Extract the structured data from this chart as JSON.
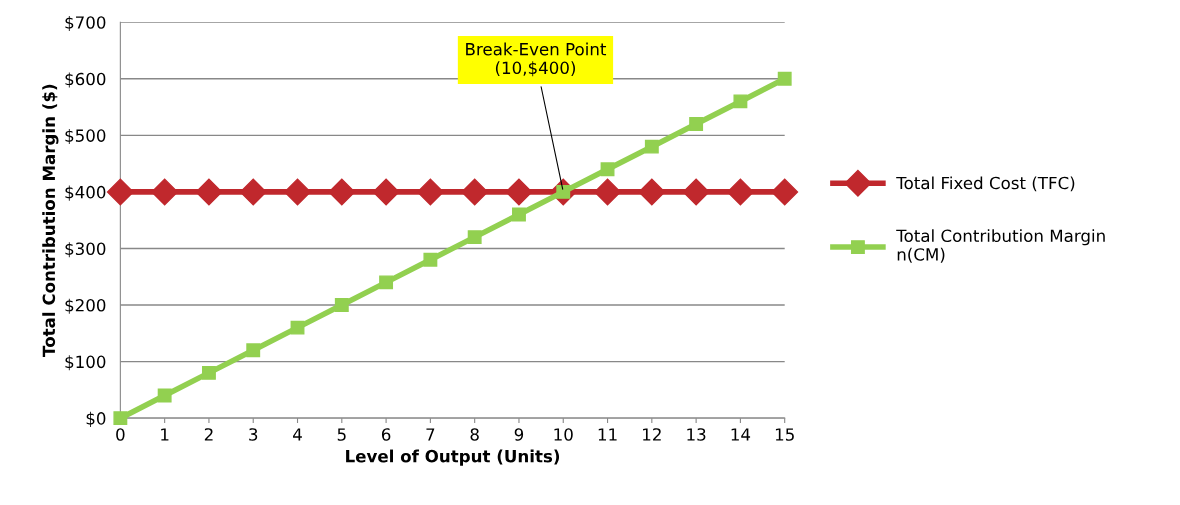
{
  "chart_data": {
    "type": "line",
    "xlabel": "Level of Output (Units)",
    "ylabel": "Total Contribution Margin ($)",
    "x": [
      0,
      1,
      2,
      3,
      4,
      5,
      6,
      7,
      8,
      9,
      10,
      11,
      12,
      13,
      14,
      15
    ],
    "series": [
      {
        "name": "Total Fixed Cost (TFC)",
        "color": "#c0282d",
        "marker": "diamond",
        "values": [
          400,
          400,
          400,
          400,
          400,
          400,
          400,
          400,
          400,
          400,
          400,
          400,
          400,
          400,
          400,
          400
        ]
      },
      {
        "name": "Total Contribution Margin n(CM)",
        "color": "#92d050",
        "marker": "square",
        "values": [
          0,
          40,
          80,
          120,
          160,
          200,
          240,
          280,
          320,
          360,
          400,
          440,
          480,
          520,
          560,
          600
        ]
      }
    ],
    "xlim": [
      0,
      15
    ],
    "xticks": [
      0,
      1,
      2,
      3,
      4,
      5,
      6,
      7,
      8,
      9,
      10,
      11,
      12,
      13,
      14,
      15
    ],
    "ylim": [
      0,
      700
    ],
    "yticks": [
      {
        "value": 0,
        "label": "$0"
      },
      {
        "value": 100,
        "label": "$100"
      },
      {
        "value": 200,
        "label": "$200"
      },
      {
        "value": 300,
        "label": "$300"
      },
      {
        "value": 400,
        "label": "$400"
      },
      {
        "value": 500,
        "label": "$500"
      },
      {
        "value": 600,
        "label": "$600"
      },
      {
        "value": 700,
        "label": "$700"
      }
    ],
    "annotations": [
      {
        "text": "Break-Even Point\n(10,$400)",
        "x": 10,
        "y": 400
      }
    ],
    "grid": "y",
    "legend": "right",
    "line_style": "solid"
  }
}
